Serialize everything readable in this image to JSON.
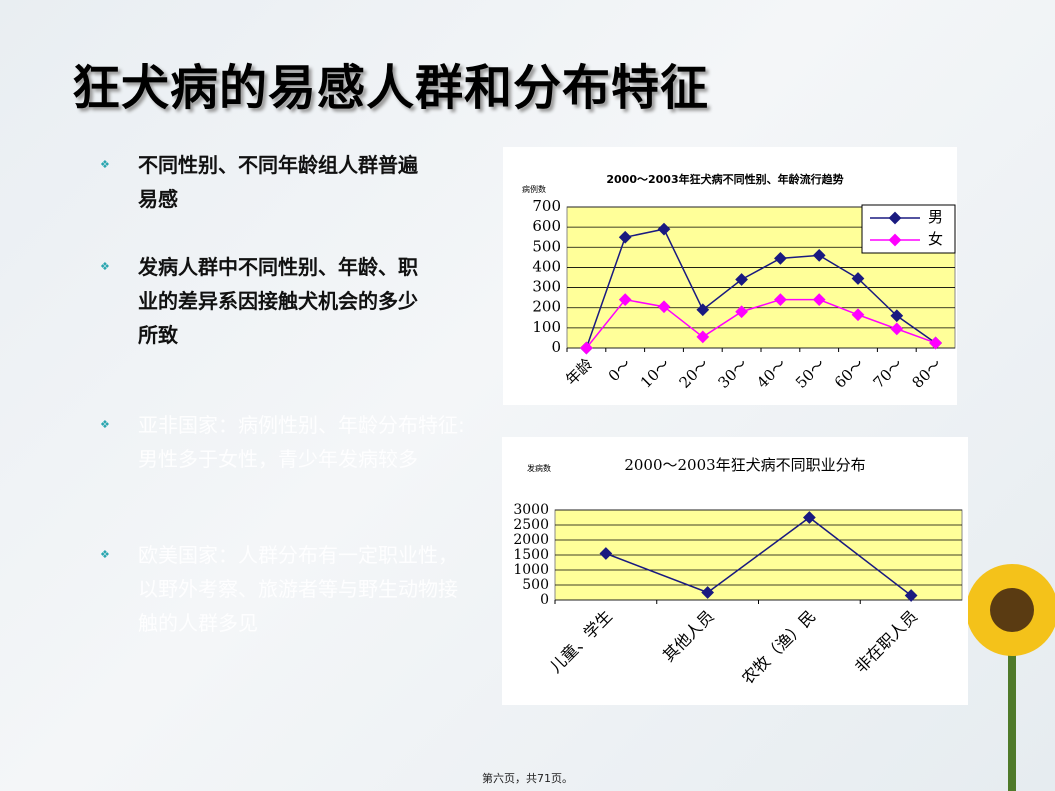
{
  "title": "狂犬病的易感人群和分布特征",
  "bullets": [
    "不同性别、不同年龄组人群普遍易感",
    "发病人群中不同性别、年龄、职业的差异系因接触犬机会的多少所致",
    "亚非国家：病例性别、年龄分布特征:男性多于女性，青少年发病较多",
    "欧美国家：人群分布有一定职业性，以野外考察、旅游者等与野生动物接触的人群多见"
  ],
  "footer": "第六页，共71页。",
  "chart_data": [
    {
      "type": "line",
      "title": "2000～2003年狂犬病不同性别、年龄流行趋势",
      "y_label": "病例数",
      "categories": [
        "年龄",
        "0～",
        "10～",
        "20～",
        "30～",
        "40～",
        "50～",
        "60～",
        "70～",
        "80～"
      ],
      "series": [
        {
          "name": "男",
          "color": "#1a1a80",
          "values": [
            0,
            550,
            590,
            190,
            340,
            445,
            460,
            345,
            160,
            25
          ]
        },
        {
          "name": "女",
          "color": "#ff00ff",
          "values": [
            0,
            240,
            205,
            55,
            180,
            240,
            240,
            165,
            95,
            25
          ]
        }
      ],
      "ylim": [
        0,
        700
      ],
      "yticks": [
        0,
        100,
        200,
        300,
        400,
        500,
        600,
        700
      ],
      "grid": true,
      "legend": "top-right"
    },
    {
      "type": "line",
      "title": "2000～2003年狂犬病不同职业分布",
      "y_label": "发病数",
      "categories": [
        "儿童、学生",
        "其他人员",
        "农牧（渔）民",
        "非在职人员"
      ],
      "series": [
        {
          "name": "发病数",
          "color": "#1a1a80",
          "values": [
            1550,
            250,
            2750,
            150
          ]
        }
      ],
      "ylim": [
        0,
        3000
      ],
      "yticks": [
        0,
        500,
        1000,
        1500,
        2000,
        2500,
        3000
      ],
      "grid": true
    }
  ]
}
